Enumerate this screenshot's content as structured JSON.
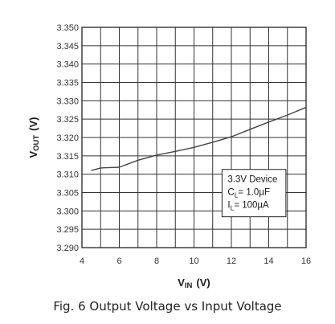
{
  "caption": "Fig. 6 Output Voltage vs Input Voltage",
  "chart_data": {
    "type": "line",
    "title": "",
    "xlabel": {
      "main": "V",
      "sub": "IN",
      "unit": "(V)"
    },
    "ylabel": {
      "main": "V",
      "sub": "OUT",
      "unit": "(V)"
    },
    "xlim": [
      4,
      16
    ],
    "ylim": [
      3.29,
      3.35
    ],
    "x_ticks": [
      4,
      6,
      8,
      10,
      12,
      14,
      16
    ],
    "x_tick_labels": [
      "4",
      "6",
      "8",
      "10",
      "12",
      "14",
      "16"
    ],
    "y_ticks": [
      3.29,
      3.295,
      3.3,
      3.305,
      3.31,
      3.315,
      3.32,
      3.325,
      3.33,
      3.335,
      3.34,
      3.345,
      3.35
    ],
    "y_tick_labels": [
      "3.290",
      "3.295",
      "3.300",
      "3.305",
      "3.310",
      "3.315",
      "3.320",
      "3.325",
      "3.330",
      "3.335",
      "3.340",
      "3.345",
      "3.350"
    ],
    "x_minor_divisions": 12,
    "y_minor_divisions": 12,
    "grid": true,
    "series": [
      {
        "name": "",
        "color": "#444444",
        "x": [
          4.5,
          5.0,
          5.5,
          6.0,
          7.0,
          8.0,
          9.0,
          10.0,
          11.0,
          12.0,
          13.0,
          14.0,
          15.0,
          16.0
        ],
        "y": [
          3.311,
          3.3117,
          3.3118,
          3.3119,
          3.3138,
          3.3152,
          3.3162,
          3.3173,
          3.3187,
          3.3202,
          3.3222,
          3.3242,
          3.3261,
          3.3282
        ]
      }
    ],
    "annotation": {
      "line1": "3.3V Device",
      "line2": {
        "main": "C",
        "sub": "L",
        "rest": "= 1.0µF"
      },
      "line3": {
        "main": "I",
        "sub": "L",
        "rest": "= 100µA"
      },
      "placement": "lower-right"
    }
  }
}
